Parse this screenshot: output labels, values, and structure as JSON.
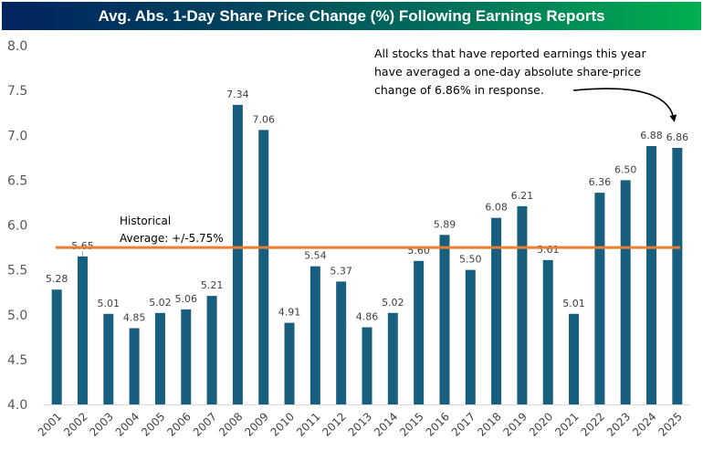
{
  "chart_data": {
    "type": "bar",
    "title": "Avg. Abs. 1-Day Share Price Change (%) Following Earnings Reports",
    "xlabel": "",
    "ylabel": "",
    "ylim": [
      4.0,
      8.0
    ],
    "yticks": [
      "4.0",
      "4.5",
      "5.0",
      "5.5",
      "6.0",
      "6.5",
      "7.0",
      "7.5",
      "8.0"
    ],
    "ytick_values": [
      4.0,
      4.5,
      5.0,
      5.5,
      6.0,
      6.5,
      7.0,
      7.5,
      8.0
    ],
    "grid": false,
    "categories": [
      "2001",
      "2002",
      "2003",
      "2004",
      "2005",
      "2006",
      "2007",
      "2008",
      "2009",
      "2010",
      "2011",
      "2012",
      "2013",
      "2014",
      "2015",
      "2016",
      "2017",
      "2018",
      "2019",
      "2020",
      "2021",
      "2022",
      "2023",
      "2024",
      "2025"
    ],
    "values": [
      5.28,
      5.65,
      5.01,
      4.85,
      5.02,
      5.06,
      5.21,
      7.34,
      7.06,
      4.91,
      5.54,
      5.37,
      4.86,
      5.02,
      5.6,
      5.89,
      5.5,
      6.08,
      6.21,
      5.61,
      5.01,
      6.36,
      6.5,
      6.88,
      6.86
    ],
    "data_labels": [
      "5.28",
      "5.65",
      "5.01",
      "4.85",
      "5.02",
      "5.06",
      "5.21",
      "7.34",
      "7.06",
      "4.91",
      "5.54",
      "5.37",
      "4.86",
      "5.02",
      "5.60",
      "5.89",
      "5.50",
      "6.08",
      "6.21",
      "5.61",
      "5.01",
      "6.36",
      "6.50",
      "6.88",
      "6.86"
    ],
    "bar_color": "#175e7f",
    "reference_line": {
      "value": 5.75,
      "color": "#ed7d31",
      "label_lines": [
        "Historical",
        "Average: +/-5.75%"
      ]
    },
    "annotation": {
      "lines": [
        "All stocks that have reported earnings this year",
        "have averaged a one-day absolute share-price",
        "change of 6.86% in response."
      ],
      "points_to": "2025"
    },
    "title_gradient": [
      "#00245f",
      "#00b050"
    ]
  }
}
